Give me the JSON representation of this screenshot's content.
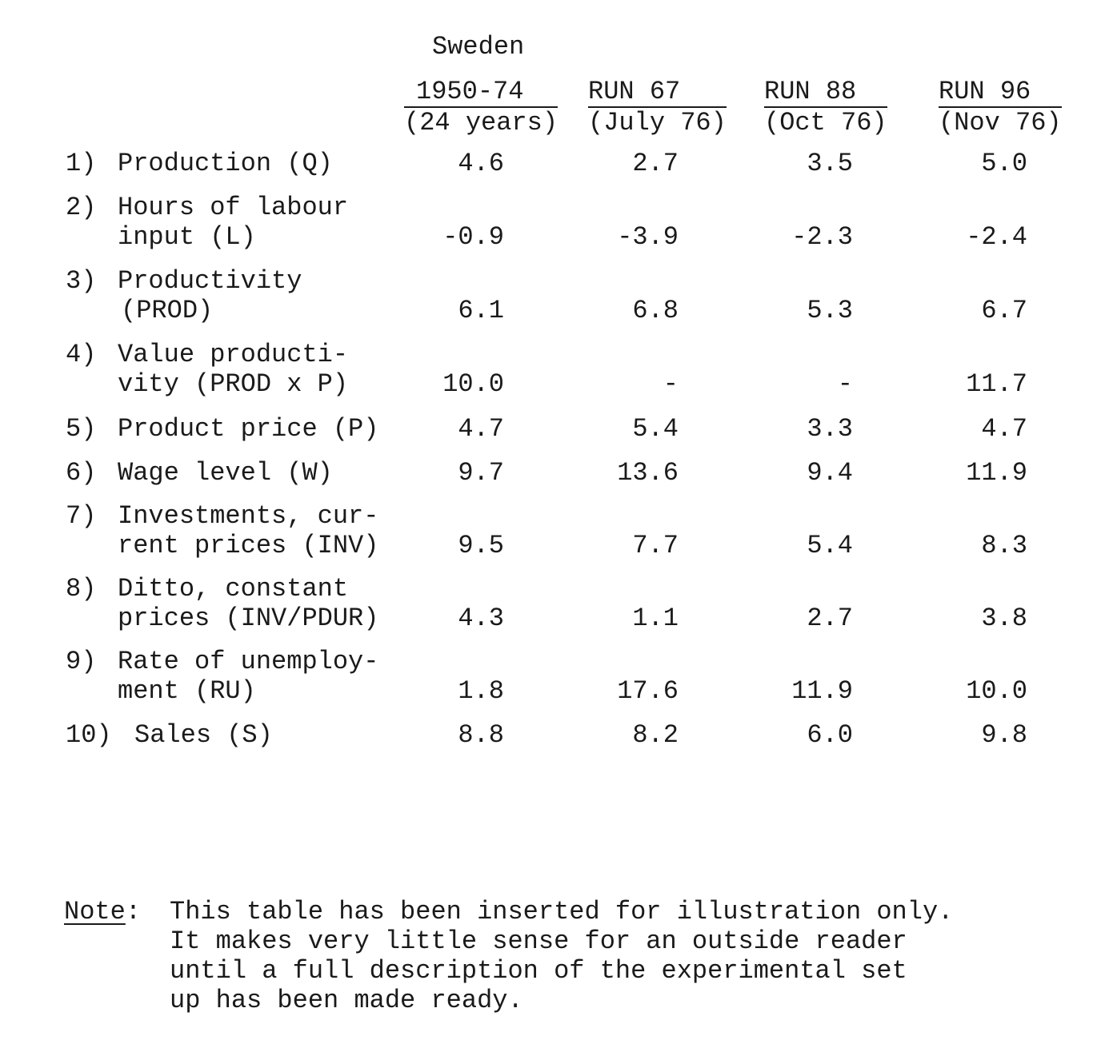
{
  "table": {
    "country": "Sweden",
    "columns": [
      {
        "top": "1950-74",
        "bottom": "(24 years)"
      },
      {
        "top": "RUN 67",
        "bottom": "(July 76)"
      },
      {
        "top": "RUN 88",
        "bottom": "(Oct 76)"
      },
      {
        "top": "RUN 96",
        "bottom": "(Nov 76)"
      }
    ],
    "rows": [
      {
        "num": "1)",
        "label": [
          "Production (Q)"
        ],
        "values": [
          "4.6",
          "2.7",
          "3.5",
          "5.0"
        ]
      },
      {
        "num": "2)",
        "label": [
          "Hours of labour",
          "input (L)"
        ],
        "values": [
          "-0.9",
          "-3.9",
          "-2.3",
          "-2.4"
        ]
      },
      {
        "num": "3)",
        "label": [
          "Productivity",
          "(PROD)"
        ],
        "values": [
          "6.1",
          "6.8",
          "5.3",
          "6.7"
        ]
      },
      {
        "num": "4)",
        "label": [
          "Value producti-",
          "vity (PROD x P)"
        ],
        "values": [
          "10.0",
          "-",
          "-",
          "11.7"
        ]
      },
      {
        "num": "5)",
        "label": [
          "Product price (P)"
        ],
        "values": [
          "4.7",
          "5.4",
          "3.3",
          "4.7"
        ]
      },
      {
        "num": "6)",
        "label": [
          "Wage level (W)"
        ],
        "values": [
          "9.7",
          "13.6",
          "9.4",
          "11.9"
        ]
      },
      {
        "num": "7)",
        "label": [
          "Investments, cur-",
          "rent prices (INV)"
        ],
        "values": [
          "9.5",
          "7.7",
          "5.4",
          "8.3"
        ]
      },
      {
        "num": "8)",
        "label": [
          "Ditto, constant",
          "prices (INV/PDUR)"
        ],
        "values": [
          "4.3",
          "1.1",
          "2.7",
          "3.8"
        ]
      },
      {
        "num": "9)",
        "label": [
          "Rate of unemploy-",
          "ment (RU)"
        ],
        "values": [
          "1.8",
          "17.6",
          "11.9",
          "10.0"
        ]
      },
      {
        "num": "10)",
        "label": [
          "Sales (S)"
        ],
        "values": [
          "8.8",
          "8.2",
          "6.0",
          "9.8"
        ]
      }
    ]
  },
  "note": {
    "label": "Note",
    "colon": ":",
    "lines": [
      "This table has been inserted for illustration only.",
      "It makes very little sense for an outside reader",
      "until a full description of the experimental set",
      "up has been made ready."
    ]
  }
}
